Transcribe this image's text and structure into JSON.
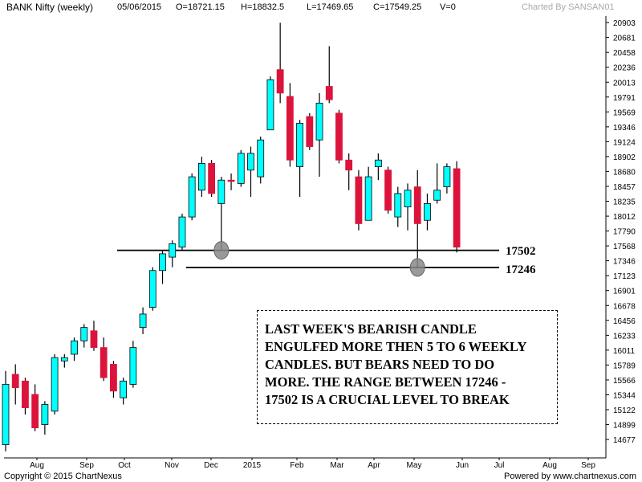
{
  "header": {
    "symbol": "BANK Nifty (weekly)",
    "date": "05/06/2015",
    "open": "O=18721.15",
    "high": "H=18832.5",
    "low": "L=17469.65",
    "close": "C=17549.25",
    "volume": "V=0",
    "charted_by": "Charted By SANSAN01"
  },
  "footer": {
    "copyright": "Copyright © 2015 ChartNexus",
    "powered_by": "Powered by www.chartnexus.com"
  },
  "annotation": {
    "lines": [
      "LAST WEEK'S BEARISH CANDLE",
      "ENGULFED MORE THEN 5 TO 6 WEEKLY",
      "CANDLES. BUT BEARS NEED TO DO",
      "MORE. THE RANGE BETWEEN 17246 -",
      "17502 IS A CRUCIAL LEVEL TO BREAK"
    ]
  },
  "colors": {
    "bull": "#00ffff",
    "bear": "#dc143c",
    "wick": "#000000",
    "level_line": "#000000",
    "marker": "#888888"
  },
  "chart_data": {
    "type": "candlestick",
    "title": "BANK Nifty (weekly)",
    "xlabel": "",
    "ylabel": "",
    "ylim": [
      14450,
      21000
    ],
    "y_ticks": [
      14677,
      14899,
      15122,
      15344,
      15566,
      15789,
      16011,
      16233,
      16456,
      16678,
      16901,
      17123,
      17346,
      17568,
      17790,
      18012,
      18235,
      18457,
      18680,
      18902,
      19124,
      19346,
      19569,
      19791,
      20013,
      20236,
      20458,
      20681,
      20903
    ],
    "x_ticks": [
      "Aug",
      "Sep",
      "Oct",
      "Nov",
      "Dec",
      "2015",
      "Feb",
      "Mar",
      "Apr",
      "May",
      "Jun",
      "Jul",
      "Aug",
      "Sep"
    ],
    "levels": [
      {
        "label": "17502",
        "value": 17502
      },
      {
        "label": "17246",
        "value": 17246
      }
    ],
    "markers": [
      {
        "week": 22,
        "value": 17502
      },
      {
        "week": 42,
        "value": 17246
      }
    ],
    "candles": [
      {
        "o": 14600,
        "h": 15700,
        "l": 14500,
        "c": 15500
      },
      {
        "o": 15650,
        "h": 15800,
        "l": 15200,
        "c": 15450
      },
      {
        "o": 15550,
        "h": 15600,
        "l": 15050,
        "c": 15150
      },
      {
        "o": 15350,
        "h": 15500,
        "l": 14800,
        "c": 14850
      },
      {
        "o": 14900,
        "h": 15250,
        "l": 14750,
        "c": 15200
      },
      {
        "o": 15100,
        "h": 15950,
        "l": 15050,
        "c": 15900
      },
      {
        "o": 15850,
        "h": 15950,
        "l": 15750,
        "c": 15900
      },
      {
        "o": 15950,
        "h": 16200,
        "l": 15850,
        "c": 16150
      },
      {
        "o": 16150,
        "h": 16400,
        "l": 16050,
        "c": 16350
      },
      {
        "o": 16300,
        "h": 16450,
        "l": 16000,
        "c": 16050
      },
      {
        "o": 16050,
        "h": 16200,
        "l": 15550,
        "c": 15600
      },
      {
        "o": 15800,
        "h": 15850,
        "l": 15300,
        "c": 15400
      },
      {
        "o": 15300,
        "h": 15600,
        "l": 15200,
        "c": 15550
      },
      {
        "o": 15500,
        "h": 16150,
        "l": 15450,
        "c": 16050
      },
      {
        "o": 16350,
        "h": 16650,
        "l": 16250,
        "c": 16550
      },
      {
        "o": 16650,
        "h": 17250,
        "l": 16600,
        "c": 17200
      },
      {
        "o": 17200,
        "h": 17500,
        "l": 17000,
        "c": 17450
      },
      {
        "o": 17400,
        "h": 17650,
        "l": 17250,
        "c": 17600
      },
      {
        "o": 17550,
        "h": 18050,
        "l": 17500,
        "c": 18000
      },
      {
        "o": 18000,
        "h": 18650,
        "l": 17950,
        "c": 18600
      },
      {
        "o": 18400,
        "h": 18900,
        "l": 18300,
        "c": 18800
      },
      {
        "o": 18800,
        "h": 18850,
        "l": 18300,
        "c": 18350
      },
      {
        "o": 18200,
        "h": 18600,
        "l": 17500,
        "c": 18550
      },
      {
        "o": 18550,
        "h": 18650,
        "l": 18400,
        "c": 18530
      },
      {
        "o": 18500,
        "h": 19000,
        "l": 18450,
        "c": 18950
      },
      {
        "o": 18700,
        "h": 19050,
        "l": 18300,
        "c": 18950
      },
      {
        "o": 18600,
        "h": 19200,
        "l": 18500,
        "c": 19150
      },
      {
        "o": 19300,
        "h": 20100,
        "l": 19300,
        "c": 20050
      },
      {
        "o": 20200,
        "h": 20900,
        "l": 19700,
        "c": 19850
      },
      {
        "o": 19800,
        "h": 20000,
        "l": 18750,
        "c": 18850
      },
      {
        "o": 18750,
        "h": 19450,
        "l": 18300,
        "c": 19400
      },
      {
        "o": 19500,
        "h": 19550,
        "l": 19000,
        "c": 19050
      },
      {
        "o": 19150,
        "h": 19850,
        "l": 18600,
        "c": 19700
      },
      {
        "o": 19950,
        "h": 20550,
        "l": 19700,
        "c": 19750
      },
      {
        "o": 19550,
        "h": 19600,
        "l": 18800,
        "c": 18850
      },
      {
        "o": 18850,
        "h": 18950,
        "l": 18400,
        "c": 18700
      },
      {
        "o": 18600,
        "h": 18700,
        "l": 17800,
        "c": 17900
      },
      {
        "o": 17950,
        "h": 18750,
        "l": 17950,
        "c": 18600
      },
      {
        "o": 18750,
        "h": 18950,
        "l": 18550,
        "c": 18850
      },
      {
        "o": 18700,
        "h": 18750,
        "l": 18050,
        "c": 18100
      },
      {
        "o": 18000,
        "h": 18450,
        "l": 17850,
        "c": 18350
      },
      {
        "o": 18150,
        "h": 18500,
        "l": 17800,
        "c": 18400
      },
      {
        "o": 18450,
        "h": 18700,
        "l": 17250,
        "c": 17900
      },
      {
        "o": 17950,
        "h": 18350,
        "l": 17800,
        "c": 18200
      },
      {
        "o": 18250,
        "h": 18800,
        "l": 18200,
        "c": 18400
      },
      {
        "o": 18450,
        "h": 18800,
        "l": 18350,
        "c": 18750
      },
      {
        "o": 18721.15,
        "h": 18832.5,
        "l": 17469.65,
        "c": 17549.25
      }
    ]
  }
}
